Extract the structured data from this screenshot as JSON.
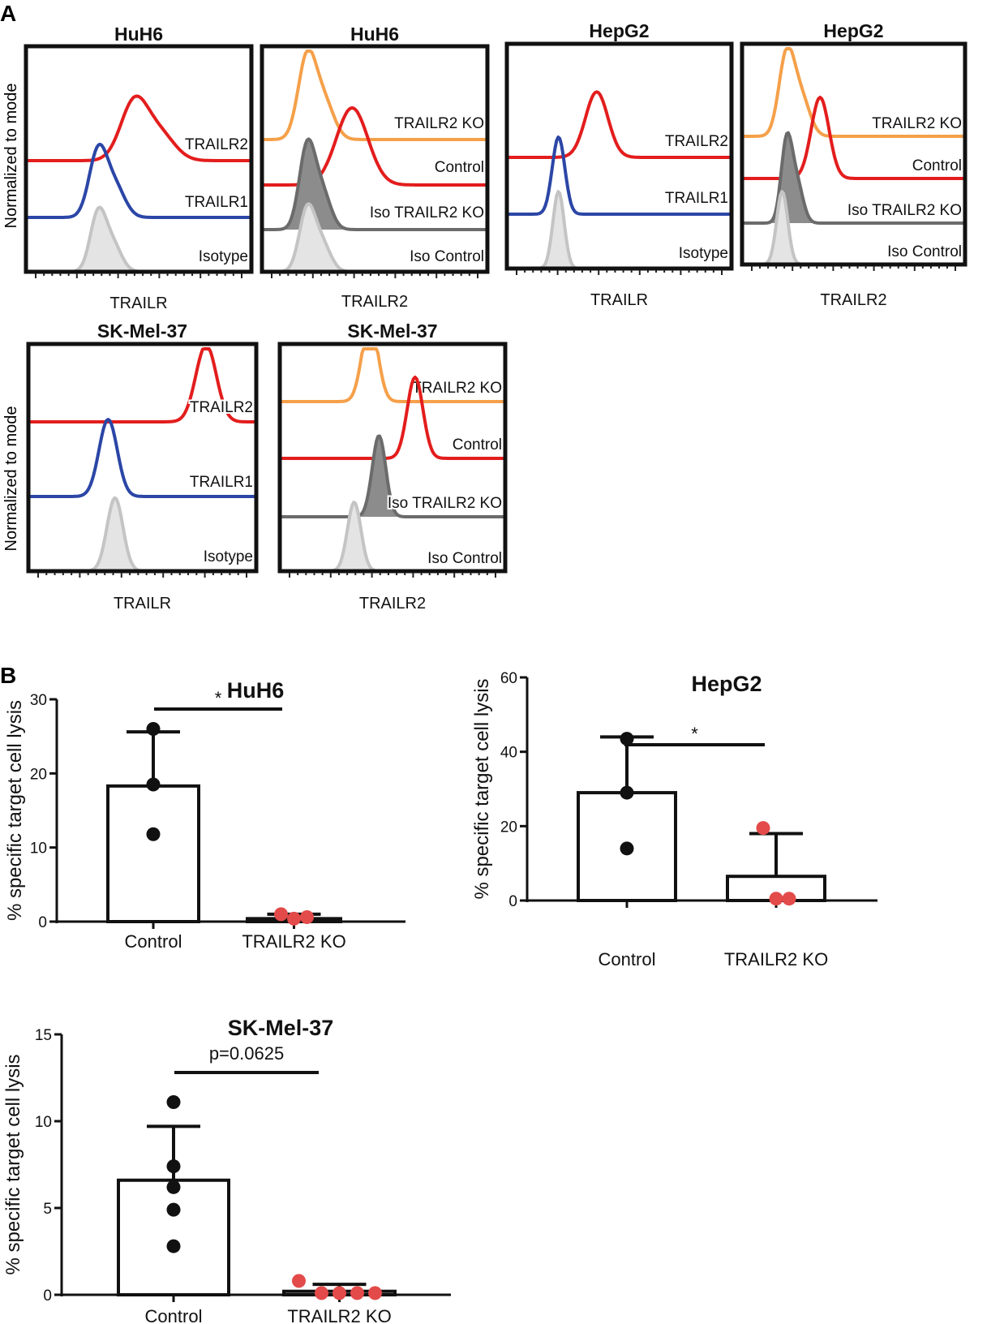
{
  "panel_labels": [
    "A",
    "B"
  ],
  "histogram_ylabel": "Normalized to mode",
  "colors": {
    "red": "#e31d1d",
    "blue": "#2b46a6",
    "orange": "#f5a04a",
    "dark_gray": "#6b6b6b",
    "light_gray": "#c4c4c4",
    "ko_dot": "#e34a4a",
    "black": "#111111"
  },
  "histograms": [
    {
      "title": "HuH6",
      "xlabel": "TRAILR",
      "traces": [
        {
          "label": "TRAILR2",
          "color": "red",
          "peak": 0.48,
          "width": 0.06,
          "height": 0.75,
          "filled": false,
          "shoulder": true
        },
        {
          "label": "TRAILR1",
          "color": "blue",
          "peak": 0.32,
          "width": 0.04,
          "height": 0.85,
          "filled": false,
          "shoulder": true
        },
        {
          "label": "Isotype",
          "color": "light_gray",
          "peak": 0.32,
          "width": 0.035,
          "height": 0.75,
          "filled": true,
          "shoulder": true
        }
      ]
    },
    {
      "title": "HuH6",
      "xlabel": "TRAILR2",
      "traces": [
        {
          "label": "TRAILR2 KO",
          "color": "orange",
          "peak": 0.2,
          "width": 0.04,
          "height": 1.0,
          "filled": false,
          "shoulder": true
        },
        {
          "label": "Control",
          "color": "red",
          "peak": 0.4,
          "width": 0.07,
          "height": 0.95,
          "filled": false,
          "shoulder": false
        },
        {
          "label": "Iso TRAILR2 KO",
          "color": "dark_gray",
          "peak": 0.2,
          "width": 0.035,
          "height": 1.0,
          "filled": true,
          "shoulder": true
        },
        {
          "label": "Iso Control",
          "color": "light_gray",
          "peak": 0.2,
          "width": 0.035,
          "height": 0.75,
          "filled": true,
          "shoulder": true
        }
      ]
    },
    {
      "title": "HepG2",
      "xlabel": "TRAILR",
      "traces": [
        {
          "label": "TRAILR2",
          "color": "red",
          "peak": 0.4,
          "width": 0.05,
          "height": 0.85,
          "filled": false,
          "shoulder": false
        },
        {
          "label": "TRAILR1",
          "color": "blue",
          "peak": 0.23,
          "width": 0.028,
          "height": 1.0,
          "filled": false,
          "shoulder": false
        },
        {
          "label": "Isotype",
          "color": "light_gray",
          "peak": 0.23,
          "width": 0.025,
          "height": 1.0,
          "filled": true,
          "shoulder": false
        }
      ]
    },
    {
      "title": "HepG2",
      "xlabel": "TRAILR2",
      "traces": [
        {
          "label": "TRAILR2 KO",
          "color": "orange",
          "peak": 0.2,
          "width": 0.035,
          "height": 1.0,
          "filled": false,
          "shoulder": true
        },
        {
          "label": "Control",
          "color": "red",
          "peak": 0.35,
          "width": 0.04,
          "height": 1.0,
          "filled": false,
          "shoulder": false
        },
        {
          "label": "Iso TRAILR2 KO",
          "color": "dark_gray",
          "peak": 0.2,
          "width": 0.025,
          "height": 1.0,
          "filled": true,
          "shoulder": true
        },
        {
          "label": "Iso Control",
          "color": "light_gray",
          "peak": 0.18,
          "width": 0.025,
          "height": 0.9,
          "filled": true,
          "shoulder": false
        }
      ]
    },
    {
      "title": "SK-Mel-37",
      "xlabel": "TRAILR",
      "traces": [
        {
          "label": "TRAILR2",
          "color": "red",
          "peak": 0.78,
          "width": 0.045,
          "height": 1.0,
          "filled": false,
          "shoulder": false
        },
        {
          "label": "TRAILR1",
          "color": "blue",
          "peak": 0.35,
          "width": 0.04,
          "height": 1.0,
          "filled": false,
          "shoulder": false
        },
        {
          "label": "Isotype",
          "color": "light_gray",
          "peak": 0.38,
          "width": 0.035,
          "height": 0.95,
          "filled": true,
          "shoulder": false
        }
      ]
    },
    {
      "title": "SK-Mel-37",
      "xlabel": "TRAILR2",
      "traces": [
        {
          "label": "TRAILR2 KO",
          "color": "orange",
          "peak": 0.4,
          "width": 0.035,
          "height": 1.0,
          "filled": false,
          "shoulder": false
        },
        {
          "label": "Control",
          "color": "red",
          "peak": 0.6,
          "width": 0.035,
          "height": 1.0,
          "filled": false,
          "shoulder": false
        },
        {
          "label": "Iso TRAILR2 KO",
          "color": "dark_gray",
          "peak": 0.44,
          "width": 0.03,
          "height": 1.0,
          "filled": true,
          "shoulder": false
        },
        {
          "label": "Iso Control",
          "color": "light_gray",
          "peak": 0.33,
          "width": 0.03,
          "height": 0.85,
          "filled": true,
          "shoulder": false
        }
      ]
    }
  ],
  "chart_data": [
    {
      "type": "bar",
      "title": "HuH6",
      "categories": [
        "Control",
        "TRAILR2 KO"
      ],
      "values": [
        18.3,
        0.4
      ],
      "sd": [
        7.3,
        0.6
      ],
      "points": [
        [
          26.0,
          18.5,
          11.8
        ],
        [
          1.0,
          0.4,
          0.6
        ]
      ],
      "ylim": [
        0,
        30
      ],
      "yticks": [
        0,
        10,
        20,
        30
      ],
      "ylabel": "% specific target cell lysis",
      "xlabel": "",
      "significance": "*"
    },
    {
      "type": "bar",
      "title": "HepG2",
      "categories": [
        "Control",
        "TRAILR2 KO"
      ],
      "values": [
        29.0,
        6.5
      ],
      "sd": [
        15.0,
        11.5
      ],
      "points": [
        [
          43.5,
          29.0,
          14.0
        ],
        [
          19.5,
          0.5,
          0.5
        ]
      ],
      "ylim": [
        0,
        60
      ],
      "yticks": [
        0,
        20,
        40,
        60
      ],
      "ylabel": "% specific target cell lysis",
      "xlabel": "",
      "significance": "*"
    },
    {
      "type": "bar",
      "title": "SK-Mel-37",
      "categories": [
        "Control",
        "TRAILR2 KO"
      ],
      "values": [
        6.6,
        0.2
      ],
      "sd": [
        3.1,
        0.4
      ],
      "points": [
        [
          11.1,
          7.4,
          6.2,
          4.9,
          2.8
        ],
        [
          0.8,
          0.1,
          0.1,
          0.1,
          0.1
        ]
      ],
      "ylim": [
        0,
        15
      ],
      "yticks": [
        0,
        5,
        10,
        15
      ],
      "ylabel": "% specific target cell lysis",
      "xlabel": "",
      "significance": "p=0.0625"
    }
  ]
}
